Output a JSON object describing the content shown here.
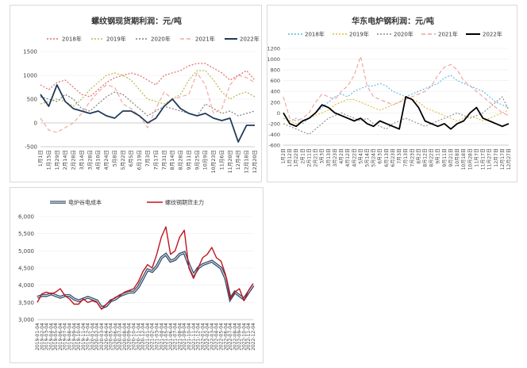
{
  "chart_data": [
    {
      "type": "line",
      "title": "螺纹钢现货期利润：元/吨",
      "x_tick_labels": [
        "1月1日",
        "1月15日",
        "1月29日",
        "2月14日",
        "2月28日",
        "3月14日",
        "3月28日",
        "4月10日",
        "4月24日",
        "5月8日",
        "5月22日",
        "6月5日",
        "6月19日",
        "7月3日",
        "7月17日",
        "7月31日",
        "8月14日",
        "8月28日",
        "9月11日",
        "9月25日",
        "10月9日",
        "10月23日",
        "11月6日",
        "11月20日",
        "12月4日",
        "12月18日",
        "12月20日"
      ],
      "ylim": [
        -500,
        1500
      ],
      "y_ticks": [
        -500,
        0,
        500,
        1000,
        1500
      ],
      "legend": "top",
      "series": [
        {
          "name": "2018年",
          "color": "#e46c6c",
          "dash": "2,2",
          "values": [
            800,
            700,
            850,
            900,
            750,
            600,
            550,
            700,
            850,
            950,
            1000,
            1050,
            1000,
            900,
            800,
            1000,
            1050,
            1100,
            1200,
            1250,
            1250,
            1150,
            1050,
            900,
            1000,
            1100,
            900
          ]
        },
        {
          "name": "2019年",
          "color": "#b8b84a",
          "dash": "2,2",
          "values": [
            400,
            450,
            500,
            450,
            350,
            500,
            700,
            850,
            1000,
            1050,
            1000,
            900,
            700,
            500,
            450,
            400,
            500,
            600,
            900,
            1100,
            1100,
            900,
            650,
            500,
            600,
            650,
            550
          ]
        },
        {
          "name": "2020年",
          "color": "#7f7f7f",
          "dash": "2,2",
          "values": [
            550,
            500,
            450,
            600,
            500,
            300,
            250,
            400,
            550,
            650,
            600,
            450,
            300,
            150,
            250,
            350,
            300,
            250,
            200,
            150,
            400,
            300,
            200,
            250,
            150,
            200,
            250
          ]
        },
        {
          "name": "2021年",
          "color": "#f4a8a0",
          "dash": "5,3",
          "values": [
            100,
            -150,
            -200,
            -100,
            0,
            200,
            450,
            650,
            800,
            750,
            400,
            300,
            150,
            -100,
            300,
            650,
            500,
            550,
            600,
            1050,
            800,
            200,
            300,
            800,
            1000,
            950,
            850
          ]
        },
        {
          "name": "2022年",
          "color": "#1f3b5a",
          "dash": "",
          "values": [
            600,
            350,
            800,
            450,
            300,
            250,
            200,
            250,
            150,
            100,
            250,
            250,
            150,
            0,
            100,
            350,
            500,
            300,
            200,
            150,
            200,
            100,
            50,
            100,
            -400,
            -50,
            -50
          ]
        }
      ]
    },
    {
      "type": "line",
      "title": "华东电炉钢利润：元/吨",
      "x_tick_labels": [
        "1月2日",
        "1月12日",
        "1月22日",
        "2月1日",
        "2月11日",
        "2月21日",
        "3月3日",
        "3月13日",
        "3月23日",
        "4月2日",
        "4月12日",
        "4月22日",
        "5月4日",
        "5月14日",
        "5月24日",
        "6月3日",
        "6月13日",
        "6月23日",
        "7月3日",
        "7月13日",
        "7月23日",
        "8月2日",
        "8月12日",
        "8月22日",
        "9月1日",
        "9月11日",
        "9月21日",
        "10月8日",
        "10月18日",
        "10月28日",
        "11月7日",
        "11月17日",
        "11月27日",
        "12月7日",
        "12月17日",
        "12月27日"
      ],
      "ylim": [
        -600,
        1200
      ],
      "y_ticks": [
        -600,
        -400,
        -200,
        0,
        200,
        400,
        600,
        800,
        1000,
        1200
      ],
      "legend": "top",
      "series": [
        {
          "name": "2018年",
          "color": "#5bb8e6",
          "dash": "2,2",
          "values": [
            -100,
            -150,
            -100,
            -200,
            -100,
            0,
            100,
            200,
            300,
            350,
            300,
            400,
            450,
            500,
            500,
            550,
            500,
            400,
            350,
            300,
            350,
            400,
            450,
            500,
            550,
            650,
            700,
            600,
            550,
            500,
            450,
            400,
            300,
            200,
            150,
            100
          ]
        },
        {
          "name": "2019年",
          "color": "#e6b832",
          "dash": "2,2",
          "values": [
            -100,
            -150,
            -200,
            -150,
            -100,
            -50,
            0,
            50,
            150,
            200,
            250,
            250,
            200,
            150,
            100,
            50,
            100,
            150,
            200,
            300,
            250,
            200,
            100,
            50,
            0,
            -50,
            -100,
            -150,
            -100,
            -50,
            -100,
            -150,
            -100,
            -50,
            0,
            50
          ]
        },
        {
          "name": "2020年",
          "color": "#8a8a8a",
          "dash": "2,2",
          "values": [
            -200,
            -250,
            -300,
            -350,
            -400,
            -300,
            -200,
            -100,
            -50,
            0,
            -50,
            -100,
            -150,
            -100,
            -200,
            -250,
            -300,
            -200,
            -150,
            -100,
            -150,
            -200,
            -250,
            -200,
            -150,
            -100,
            -50,
            0,
            -50,
            -100,
            -50,
            0,
            100,
            200,
            300,
            50
          ]
        },
        {
          "name": "2021年",
          "color": "#f0a09a",
          "dash": "5,3",
          "values": [
            300,
            -100,
            -150,
            -100,
            0,
            200,
            350,
            300,
            250,
            400,
            500,
            700,
            1050,
            500,
            300,
            250,
            200,
            150,
            200,
            250,
            300,
            350,
            400,
            500,
            700,
            850,
            900,
            800,
            600,
            500,
            400,
            300,
            200,
            100,
            0,
            -50
          ]
        },
        {
          "name": "2022年",
          "color": "#000000",
          "dash": "",
          "values": [
            0,
            -200,
            -250,
            -150,
            -100,
            0,
            150,
            100,
            0,
            -50,
            -100,
            -150,
            -100,
            -200,
            -250,
            -150,
            -200,
            -250,
            -300,
            300,
            250,
            100,
            -150,
            -200,
            -250,
            -200,
            -300,
            -200,
            -150,
            0,
            100,
            -100,
            -150,
            -200,
            -250,
            -200
          ]
        }
      ]
    },
    {
      "type": "line",
      "title": "",
      "x_tick_labels": [
        "2019-01-04",
        "2019-02-04",
        "2019-03-04",
        "2019-04-04",
        "2019-05-04",
        "2019-06-04",
        "2019-07-04",
        "2019-08-04",
        "2019-09-04",
        "2019-10-04",
        "2019-11-04",
        "2019-12-04",
        "2020-01-04",
        "2020-02-04",
        "2020-03-04",
        "2020-04-04",
        "2020-05-04",
        "2020-06-04",
        "2020-07-04",
        "2020-08-04",
        "2020-09-04",
        "2020-10-04",
        "2020-11-04",
        "2020-12-04",
        "2021-01-04",
        "2021-02-04",
        "2021-03-04",
        "2021-04-04",
        "2021-05-04",
        "2021-06-04",
        "2021-07-04",
        "2021-08-04",
        "2021-09-04",
        "2021-10-04",
        "2021-11-04",
        "2021-12-04",
        "2022-01-04",
        "2022-02-04",
        "2022-03-04",
        "2022-04-04",
        "2022-05-04",
        "2022-06-04",
        "2022-07-04",
        "2022-08-04",
        "2022-09-04",
        "2022-10-04",
        "2022-11-04",
        "2022-12-04"
      ],
      "ylim": [
        3000,
        6000
      ],
      "y_ticks": [
        "3,000",
        "3,500",
        "4,000",
        "4,500",
        "5,000",
        "5,500",
        "6,000"
      ],
      "legend": "top",
      "series": [
        {
          "name": "电炉谷电成本",
          "color": "#3a5470",
          "dash": "",
          "values": [
            3650,
            3700,
            3700,
            3750,
            3700,
            3650,
            3700,
            3700,
            3600,
            3550,
            3600,
            3650,
            3600,
            3550,
            3350,
            3400,
            3550,
            3600,
            3700,
            3750,
            3800,
            3800,
            3950,
            4200,
            4450,
            4400,
            4550,
            4800,
            4900,
            4700,
            4750,
            4900,
            4950,
            4600,
            4300,
            4500,
            4600,
            4650,
            4700,
            4600,
            4500,
            4200,
            3600,
            3800,
            3700,
            3600,
            3800,
            4000
          ]
        },
        {
          "name": "螺纹钢期货主力",
          "color": "#c0141c",
          "dash": "",
          "values": [
            3500,
            3750,
            3800,
            3750,
            3800,
            3900,
            3700,
            3600,
            3450,
            3450,
            3600,
            3500,
            3550,
            3500,
            3300,
            3450,
            3550,
            3650,
            3700,
            3800,
            3850,
            3900,
            4100,
            4400,
            4600,
            4500,
            4900,
            5400,
            5700,
            4900,
            5000,
            5400,
            5600,
            4500,
            4200,
            4500,
            4800,
            4900,
            5100,
            4800,
            4700,
            4300,
            3600,
            3800,
            3900,
            3550,
            3850,
            4050
          ]
        }
      ]
    }
  ]
}
